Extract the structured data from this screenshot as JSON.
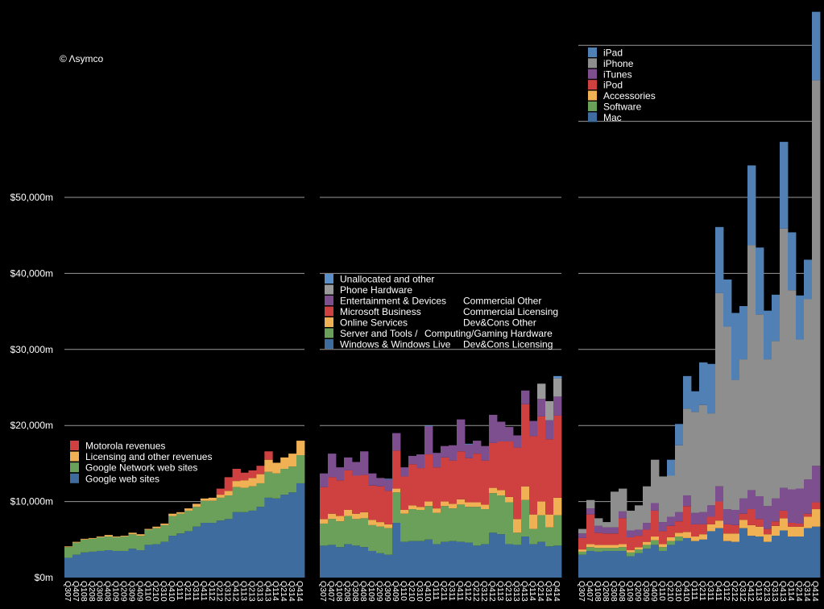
{
  "watermark": "© Λsymco",
  "y_axis": {
    "tick_values": [
      0,
      10000,
      20000,
      30000,
      40000,
      50000
    ],
    "tick_labels": [
      "$0m",
      "$10,000m",
      "$20,000m",
      "$30,000m",
      "$40,000m",
      "$50,000m"
    ]
  },
  "chart_data": [
    {
      "type": "bar",
      "stacked": true,
      "grid": true,
      "legend_position": "inside-left",
      "ylim": [
        0,
        76000
      ],
      "gridlines": [
        10000,
        20000,
        30000,
        40000,
        50000
      ],
      "categories": [
        "Q307",
        "Q407",
        "Q108",
        "Q208",
        "Q308",
        "Q408",
        "Q109",
        "Q209",
        "Q309",
        "Q409",
        "Q110",
        "Q210",
        "Q310",
        "Q410",
        "Q111",
        "Q211",
        "Q311",
        "Q411",
        "Q112",
        "Q212",
        "Q312",
        "Q412",
        "Q113",
        "Q213",
        "Q313",
        "Q413",
        "Q114",
        "Q214",
        "Q314",
        "Q414"
      ],
      "series": [
        {
          "name": "Google web sites",
          "color": "#3e6c9e",
          "values": [
            2600,
            3000,
            3300,
            3400,
            3500,
            3600,
            3500,
            3500,
            3800,
            3600,
            4300,
            4400,
            4700,
            5500,
            5800,
            6100,
            6700,
            7200,
            7200,
            7500,
            7700,
            8600,
            8600,
            8800,
            9300,
            10500,
            10400,
            10900,
            11200,
            12400
          ]
        },
        {
          "name": "Google Network web sites",
          "color": "#6aa05a",
          "values": [
            1400,
            1600,
            1700,
            1700,
            1800,
            1800,
            1800,
            1900,
            1900,
            1900,
            2000,
            2100,
            2200,
            2600,
            2600,
            2700,
            2600,
            2900,
            2900,
            3000,
            3100,
            3300,
            3200,
            3200,
            3100,
            3400,
            3300,
            3400,
            3400,
            3700
          ]
        },
        {
          "name": "Licensing and other revenues",
          "color": "#f0b154",
          "values": [
            100,
            100,
            100,
            100,
            100,
            200,
            100,
            100,
            200,
            200,
            100,
            200,
            200,
            300,
            200,
            300,
            400,
            300,
            400,
            400,
            600,
            800,
            1000,
            1100,
            1200,
            1600,
            1400,
            1500,
            1700,
            1900
          ]
        },
        {
          "name": "Motorola revenues",
          "color": "#cf4141",
          "values": [
            0,
            0,
            0,
            0,
            0,
            0,
            0,
            0,
            0,
            0,
            0,
            0,
            0,
            0,
            0,
            0,
            0,
            0,
            0,
            800,
            1800,
            1600,
            1000,
            1000,
            1100,
            1100,
            0,
            0,
            0,
            0
          ]
        }
      ]
    },
    {
      "type": "bar",
      "stacked": true,
      "grid": true,
      "legend_position": "top-left",
      "ylim": [
        0,
        76000
      ],
      "gridlines": [
        10000,
        20000,
        30000,
        40000,
        50000
      ],
      "categories": [
        "Q307",
        "Q407",
        "Q108",
        "Q208",
        "Q308",
        "Q408",
        "Q109",
        "Q209",
        "Q309",
        "Q409",
        "Q110",
        "Q210",
        "Q310",
        "Q410",
        "Q111",
        "Q211",
        "Q311",
        "Q411",
        "Q112",
        "Q212",
        "Q312",
        "Q412",
        "Q113",
        "Q213",
        "Q313",
        "Q413",
        "Q114",
        "Q214",
        "Q314",
        "Q414"
      ],
      "series": [
        {
          "name": "Windows & Windows Live",
          "alt_name": "Dev&Cons Licensing",
          "color": "#3e6c9e",
          "values": [
            4200,
            4300,
            4000,
            4400,
            4200,
            4000,
            3500,
            3200,
            3000,
            7200,
            4700,
            4800,
            4800,
            5000,
            4400,
            4700,
            4800,
            4700,
            4600,
            4200,
            4400,
            5900,
            5700,
            4400,
            4300,
            5400,
            4400,
            4700,
            4100,
            4200
          ]
        },
        {
          "name": "Server and Tools /",
          "alt_name": "Computing/Gaming Hardware",
          "color": "#6aa05a",
          "values": [
            2900,
            3400,
            3400,
            3700,
            3500,
            3800,
            3400,
            3500,
            3500,
            4000,
            3700,
            4200,
            4100,
            4400,
            4100,
            4700,
            4300,
            4900,
            4700,
            5100,
            4600,
            5200,
            5100,
            5500,
            1600,
            4800,
            2000,
            3500,
            2500,
            4000
          ]
        },
        {
          "name": "Online Services",
          "alt_name": "Dev&Cons Other",
          "color": "#f0b154",
          "values": [
            600,
            700,
            700,
            800,
            700,
            800,
            700,
            600,
            500,
            500,
            500,
            500,
            400,
            600,
            600,
            600,
            600,
            700,
            600,
            600,
            600,
            700,
            700,
            700,
            1800,
            1800,
            1900,
            1800,
            1700,
            2300
          ]
        },
        {
          "name": "Microsoft Business",
          "alt_name": "Commercial Licensing",
          "color": "#cf4141",
          "values": [
            4200,
            4800,
            4700,
            5200,
            5000,
            4900,
            4500,
            4700,
            4400,
            5000,
            4400,
            5400,
            5100,
            6200,
            5400,
            5800,
            5700,
            6300,
            5800,
            6400,
            5800,
            5900,
            6400,
            7300,
            9400,
            10800,
            10300,
            11200,
            9900,
            10800
          ]
        },
        {
          "name": "Entertainment & Devices",
          "alt_name": "Commercial Other",
          "color": "#7e4f8f",
          "values": [
            1800,
            3100,
            1700,
            1700,
            1800,
            3100,
            1600,
            1100,
            1500,
            2300,
            1200,
            1100,
            1800,
            3700,
            1900,
            1500,
            2000,
            4200,
            1800,
            1700,
            1900,
            3700,
            2600,
            1900,
            1600,
            1800,
            2000,
            2300,
            2500,
            2500
          ]
        },
        {
          "name": "Phone Hardware",
          "color": "#9a9a9a",
          "values": [
            0,
            0,
            0,
            0,
            0,
            0,
            0,
            0,
            0,
            0,
            0,
            0,
            0,
            0,
            0,
            0,
            0,
            0,
            0,
            0,
            0,
            0,
            0,
            0,
            0,
            0,
            0,
            2000,
            2500,
            2400
          ]
        },
        {
          "name": "Unallocated and other",
          "color": "#5b8fc8",
          "values": [
            0,
            0,
            0,
            0,
            0,
            0,
            0,
            0,
            100,
            0,
            0,
            0,
            0,
            100,
            0,
            0,
            0,
            0,
            100,
            0,
            0,
            0,
            0,
            0,
            0,
            0,
            0,
            0,
            0,
            300
          ]
        }
      ]
    },
    {
      "type": "bar",
      "stacked": true,
      "grid": true,
      "legend_position": "top-left",
      "ylim": [
        0,
        76000
      ],
      "gridlines": [
        10000,
        20000,
        30000,
        40000,
        50000,
        60000,
        70000
      ],
      "categories": [
        "Q307",
        "Q407",
        "Q108",
        "Q208",
        "Q308",
        "Q408",
        "Q109",
        "Q209",
        "Q309",
        "Q409",
        "Q110",
        "Q210",
        "Q310",
        "Q410",
        "Q111",
        "Q211",
        "Q311",
        "Q411",
        "Q112",
        "Q212",
        "Q312",
        "Q412",
        "Q113",
        "Q213",
        "Q313",
        "Q413",
        "Q114",
        "Q214",
        "Q314",
        "Q414"
      ],
      "series": [
        {
          "name": "Mac",
          "color": "#3e6c9e",
          "values": [
            3000,
            3500,
            3400,
            3500,
            3500,
            3500,
            2800,
            3200,
            3800,
            4300,
            3500,
            4300,
            4800,
            5200,
            4800,
            5000,
            6100,
            6500,
            4800,
            4700,
            6500,
            5500,
            5400,
            4700,
            5500,
            6200,
            5400,
            5400,
            6500,
            6700
          ]
        },
        {
          "name": "Software",
          "color": "#6aa05a",
          "values": [
            400,
            500,
            500,
            400,
            400,
            500,
            500,
            500,
            500,
            600,
            500,
            500,
            600,
            0,
            0,
            0,
            0,
            0,
            0,
            0,
            0,
            0,
            0,
            0,
            0,
            0,
            0,
            0,
            0,
            0
          ]
        },
        {
          "name": "Accessories",
          "color": "#f0b154",
          "values": [
            300,
            400,
            400,
            400,
            400,
            400,
            300,
            300,
            400,
            500,
            400,
            500,
            500,
            800,
            600,
            700,
            900,
            1000,
            1000,
            1100,
            1100,
            1400,
            1300,
            1000,
            1300,
            1600,
            1300,
            1300,
            1500,
            2300
          ]
        },
        {
          "name": "iPod",
          "color": "#cf4141",
          "values": [
            1500,
            3900,
            1600,
            1500,
            1500,
            3400,
            1700,
            1500,
            1600,
            3400,
            1700,
            1500,
            1500,
            3400,
            1600,
            1300,
            1000,
            2500,
            1200,
            1100,
            800,
            2100,
            1000,
            700,
            600,
            1000,
            500,
            400,
            400,
            900
          ]
        },
        {
          "name": "iTunes",
          "color": "#7e4f8f",
          "values": [
            600,
            800,
            900,
            800,
            800,
            900,
            900,
            800,
            900,
            1000,
            1200,
            1200,
            1200,
            1400,
            1500,
            1600,
            1500,
            2000,
            2000,
            2000,
            2000,
            2500,
            3000,
            3000,
            3000,
            3000,
            4400,
            4600,
            4500,
            4800
          ]
        },
        {
          "name": "iPhone",
          "color": "#8e8e8e",
          "values": [
            600,
            1100,
            1000,
            700,
            4700,
            3000,
            2600,
            3200,
            4800,
            5700,
            6000,
            5400,
            8800,
            11400,
            13300,
            14100,
            12100,
            25400,
            24000,
            17100,
            18300,
            32200,
            23900,
            19300,
            20700,
            34100,
            26200,
            19600,
            23700,
            50700
          ]
        },
        {
          "name": "iPad",
          "color": "#5080b4",
          "values": [
            0,
            0,
            0,
            0,
            0,
            0,
            0,
            0,
            0,
            0,
            0,
            2100,
            2800,
            4300,
            2700,
            5600,
            6500,
            8700,
            6200,
            8800,
            7000,
            10500,
            8800,
            6400,
            6100,
            11400,
            7600,
            5800,
            5200,
            9000
          ]
        }
      ]
    }
  ]
}
